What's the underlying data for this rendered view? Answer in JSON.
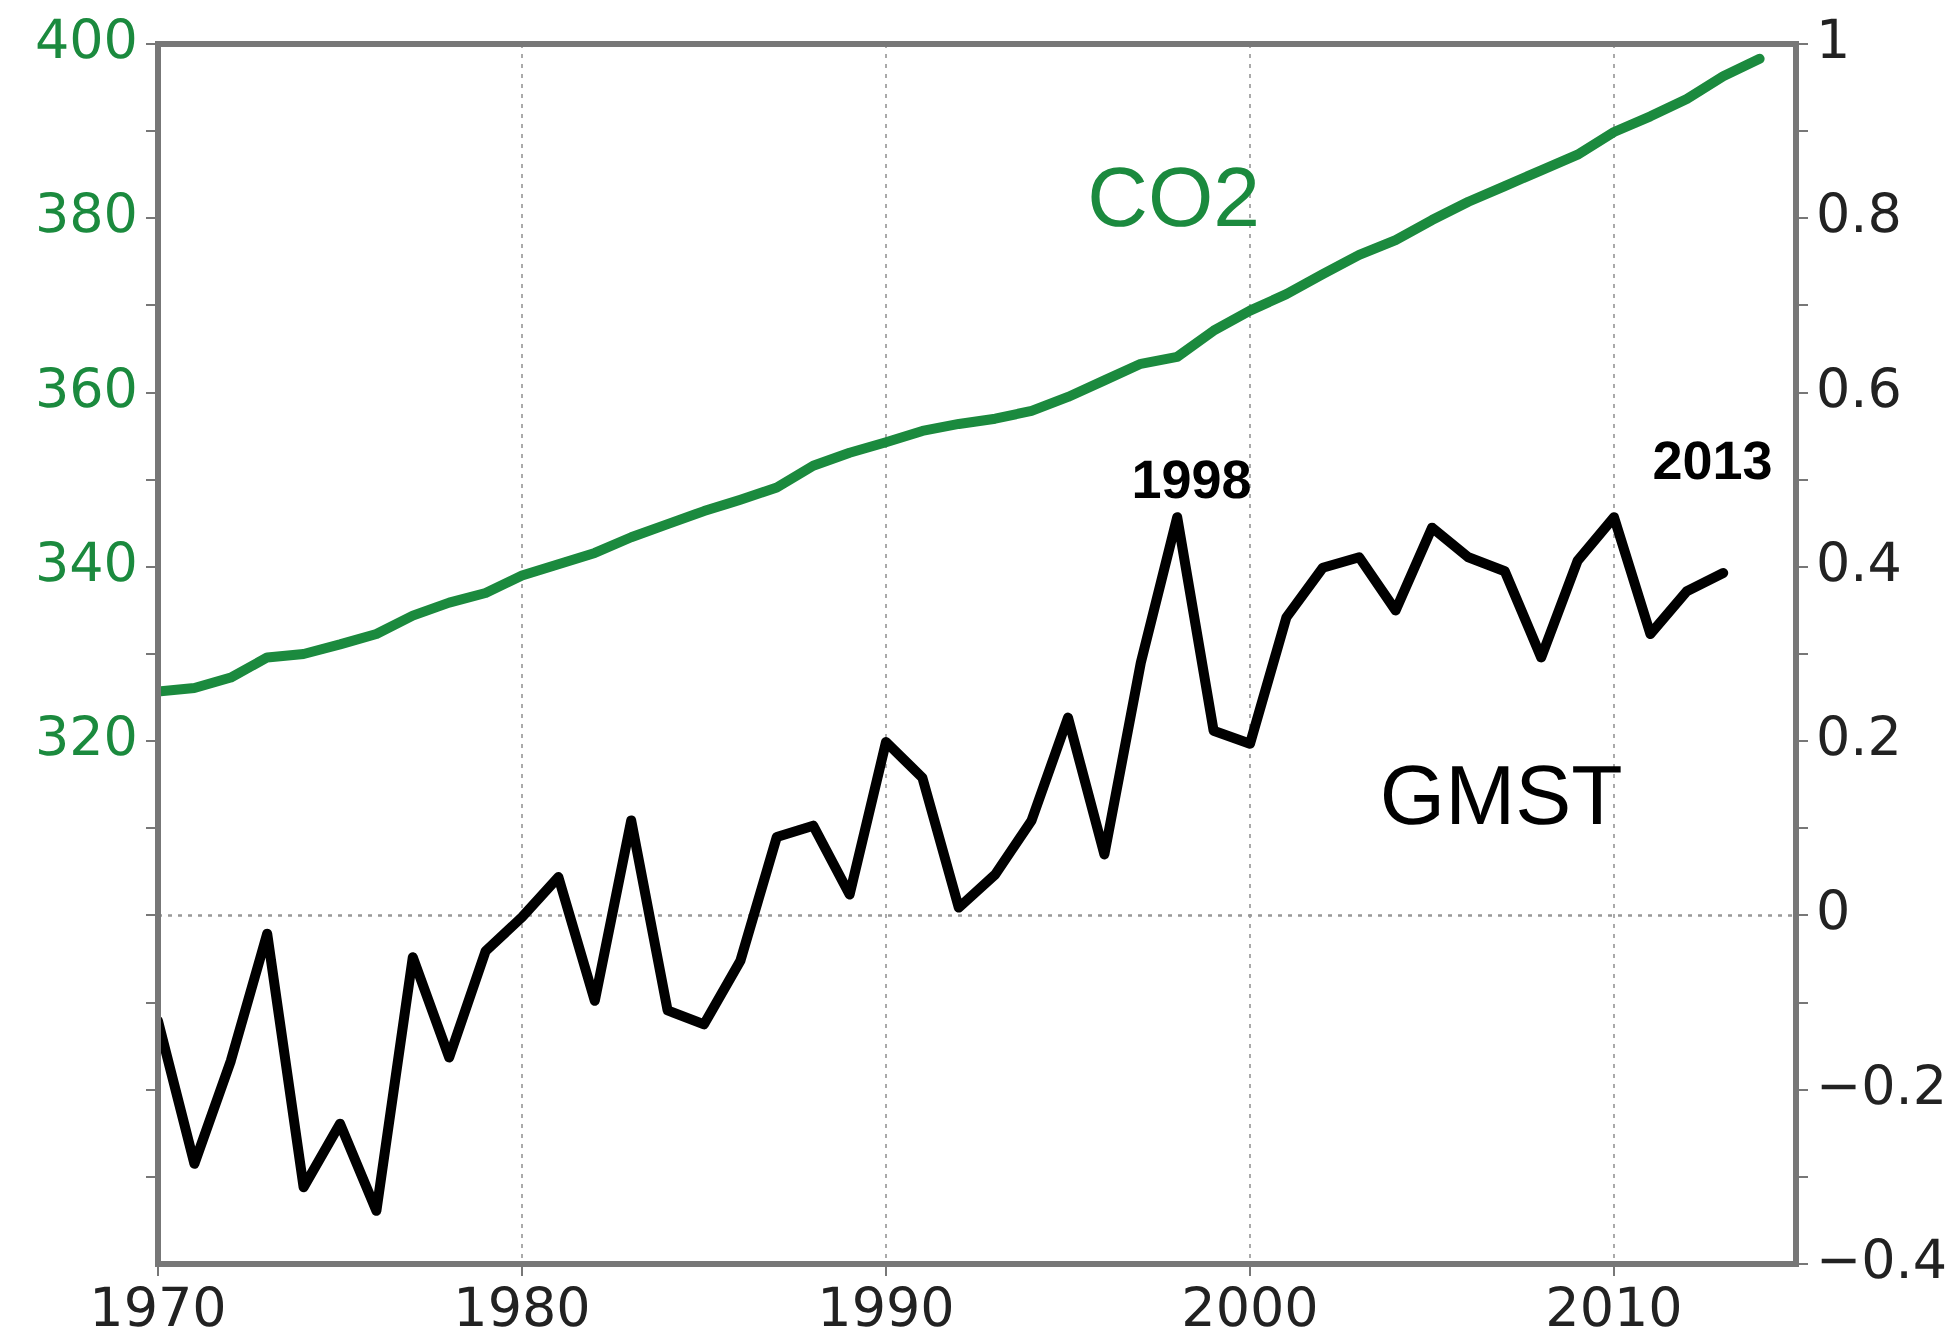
{
  "chart_data": {
    "type": "line",
    "x": [
      1970,
      1971,
      1972,
      1973,
      1974,
      1975,
      1976,
      1977,
      1978,
      1979,
      1980,
      1981,
      1982,
      1983,
      1984,
      1985,
      1986,
      1987,
      1988,
      1989,
      1990,
      1991,
      1992,
      1993,
      1994,
      1995,
      1996,
      1997,
      1998,
      1999,
      2000,
      2001,
      2002,
      2003,
      2004,
      2005,
      2006,
      2007,
      2008,
      2009,
      2010,
      2011,
      2012,
      2013,
      2014
    ],
    "series": [
      {
        "name": "CO2",
        "color": "#1b8a3e",
        "values": [
          325.7,
          326.1,
          327.3,
          329.6,
          330.0,
          331.1,
          332.3,
          334.4,
          335.9,
          337.0,
          339.0,
          340.3,
          341.6,
          343.4,
          344.9,
          346.4,
          347.7,
          349.1,
          351.6,
          353.1,
          354.3,
          355.6,
          356.4,
          357.0,
          357.9,
          359.5,
          361.4,
          363.3,
          364.1,
          367.1,
          369.4,
          371.3,
          373.6,
          375.8,
          377.5,
          379.8,
          381.9,
          383.7,
          385.5,
          387.3,
          389.9,
          391.7,
          393.7,
          396.3,
          398.3
        ]
      },
      {
        "name": "GMST",
        "color": "#000000",
        "axis": "y2",
        "values": [
          -0.121,
          -0.285,
          -0.167,
          -0.021,
          -0.312,
          -0.239,
          -0.339,
          -0.048,
          -0.163,
          -0.041,
          -0.002,
          0.044,
          -0.098,
          0.109,
          -0.109,
          -0.125,
          -0.052,
          0.09,
          0.103,
          0.024,
          0.199,
          0.158,
          0.009,
          0.047,
          0.109,
          0.227,
          0.07,
          0.29,
          0.457,
          0.212,
          0.197,
          0.342,
          0.399,
          0.411,
          0.35,
          0.445,
          0.411,
          0.395,
          0.296,
          0.407,
          0.457,
          0.323,
          0.372,
          0.393,
          null
        ]
      }
    ],
    "xlim": [
      1970,
      2015
    ],
    "xticks": [
      1970,
      1980,
      1990,
      2000,
      2010
    ],
    "ylim": [
      260,
      400
    ],
    "yticks": [
      {
        "value": 270,
        "label": null
      },
      {
        "value": 280,
        "label": null
      },
      {
        "value": 290,
        "label": null
      },
      {
        "value": 300,
        "label": null
      },
      {
        "value": 310,
        "label": null
      },
      320,
      {
        "value": 330,
        "label": null
      },
      340,
      {
        "value": 350,
        "label": null
      },
      360,
      {
        "value": 370,
        "label": null
      },
      380,
      {
        "value": 390,
        "label": null
      },
      400
    ],
    "y2lim": [
      -0.4,
      1
    ],
    "y2ticks": [
      {
        "value": -0.4,
        "label": "−0.4"
      },
      {
        "value": -0.3,
        "label": null
      },
      {
        "value": -0.2,
        "label": "−0.2"
      },
      {
        "value": -0.1,
        "label": null
      },
      0,
      {
        "value": 0.1,
        "label": null
      },
      0.2,
      {
        "value": 0.3,
        "label": null
      },
      0.4,
      {
        "value": 0.5,
        "label": null
      },
      0.6,
      {
        "value": 0.7,
        "label": null
      },
      0.8,
      {
        "value": 0.9,
        "label": null
      },
      1
    ],
    "grid": "x",
    "ref_lines": [
      {
        "axis": "y2",
        "value": 0,
        "color": "#999999",
        "line_style": "dotted"
      }
    ],
    "annotations": [
      "1998",
      "2013"
    ],
    "legend": false,
    "marker": "none",
    "line_style": "solid"
  }
}
